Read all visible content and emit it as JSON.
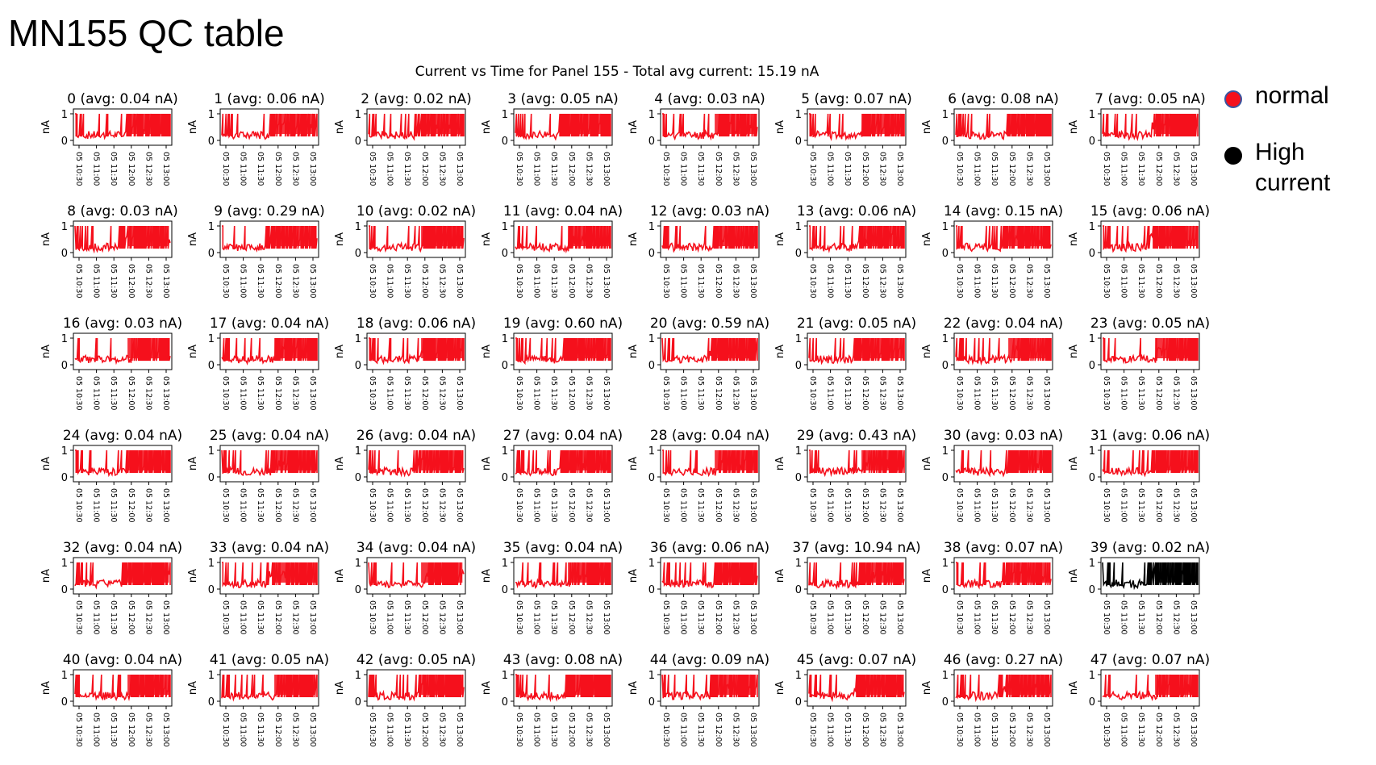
{
  "slide_title": "MN155 QC table",
  "legend": [
    {
      "label": "normal",
      "color": "#f5101c",
      "outline": "#3a55a0"
    },
    {
      "label": "High current",
      "color": "#000000",
      "outline": "#000000"
    }
  ],
  "colors": {
    "normal": "#f5101c",
    "high": "#000000"
  },
  "chart_data": {
    "type": "line",
    "title": "Current vs Time for Panel 155 - Total avg current: 15.19 nA",
    "ylabel": "nA",
    "ylim": [
      0,
      1
    ],
    "yticks": [
      "0",
      "1"
    ],
    "xticks": [
      "05 10:30",
      "05 11:00",
      "05 11:30",
      "05 12:00",
      "05 12:30",
      "05 13:00"
    ],
    "grid": false,
    "layout": "6 rows x 8 columns",
    "panels": [
      {
        "label": "0 (avg: 0.04 nA)",
        "status": "normal"
      },
      {
        "label": "1 (avg: 0.06 nA)",
        "status": "normal"
      },
      {
        "label": "2 (avg: 0.02 nA)",
        "status": "normal"
      },
      {
        "label": "3 (avg: 0.05 nA)",
        "status": "normal"
      },
      {
        "label": "4 (avg: 0.03 nA)",
        "status": "normal"
      },
      {
        "label": "5 (avg: 0.07 nA)",
        "status": "normal"
      },
      {
        "label": "6 (avg: 0.08 nA)",
        "status": "normal"
      },
      {
        "label": "7 (avg: 0.05 nA)",
        "status": "normal"
      },
      {
        "label": "8 (avg: 0.03 nA)",
        "status": "normal"
      },
      {
        "label": "9 (avg: 0.29 nA)",
        "status": "normal"
      },
      {
        "label": "10 (avg: 0.02 nA)",
        "status": "normal"
      },
      {
        "label": "11 (avg: 0.04 nA)",
        "status": "normal"
      },
      {
        "label": "12 (avg: 0.03 nA)",
        "status": "normal"
      },
      {
        "label": "13 (avg: 0.06 nA)",
        "status": "normal"
      },
      {
        "label": "14 (avg: 0.15 nA)",
        "status": "normal"
      },
      {
        "label": "15 (avg: 0.06 nA)",
        "status": "normal"
      },
      {
        "label": "16 (avg: 0.03 nA)",
        "status": "normal"
      },
      {
        "label": "17 (avg: 0.04 nA)",
        "status": "normal"
      },
      {
        "label": "18 (avg: 0.06 nA)",
        "status": "normal"
      },
      {
        "label": "19 (avg: 0.60 nA)",
        "status": "normal"
      },
      {
        "label": "20 (avg: 0.59 nA)",
        "status": "normal"
      },
      {
        "label": "21 (avg: 0.05 nA)",
        "status": "normal"
      },
      {
        "label": "22 (avg: 0.04 nA)",
        "status": "normal"
      },
      {
        "label": "23 (avg: 0.05 nA)",
        "status": "normal"
      },
      {
        "label": "24 (avg: 0.04 nA)",
        "status": "normal"
      },
      {
        "label": "25 (avg: 0.04 nA)",
        "status": "normal"
      },
      {
        "label": "26 (avg: 0.04 nA)",
        "status": "normal"
      },
      {
        "label": "27 (avg: 0.04 nA)",
        "status": "normal"
      },
      {
        "label": "28 (avg: 0.04 nA)",
        "status": "normal"
      },
      {
        "label": "29 (avg: 0.43 nA)",
        "status": "normal"
      },
      {
        "label": "30 (avg: 0.03 nA)",
        "status": "normal"
      },
      {
        "label": "31 (avg: 0.06 nA)",
        "status": "normal"
      },
      {
        "label": "32 (avg: 0.04 nA)",
        "status": "normal"
      },
      {
        "label": "33 (avg: 0.04 nA)",
        "status": "normal"
      },
      {
        "label": "34 (avg: 0.04 nA)",
        "status": "normal"
      },
      {
        "label": "35 (avg: 0.04 nA)",
        "status": "normal"
      },
      {
        "label": "36 (avg: 0.06 nA)",
        "status": "normal"
      },
      {
        "label": "37 (avg: 10.94 nA)",
        "status": "normal"
      },
      {
        "label": "38 (avg: 0.07 nA)",
        "status": "normal"
      },
      {
        "label": "39 (avg: 0.02 nA)",
        "status": "high"
      },
      {
        "label": "40 (avg: 0.04 nA)",
        "status": "normal"
      },
      {
        "label": "41 (avg: 0.05 nA)",
        "status": "normal"
      },
      {
        "label": "42 (avg: 0.05 nA)",
        "status": "normal"
      },
      {
        "label": "43 (avg: 0.08 nA)",
        "status": "normal"
      },
      {
        "label": "44 (avg: 0.09 nA)",
        "status": "normal"
      },
      {
        "label": "45 (avg: 0.07 nA)",
        "status": "normal"
      },
      {
        "label": "46 (avg: 0.27 nA)",
        "status": "normal"
      },
      {
        "label": "47 (avg: 0.07 nA)",
        "status": "normal"
      }
    ]
  }
}
